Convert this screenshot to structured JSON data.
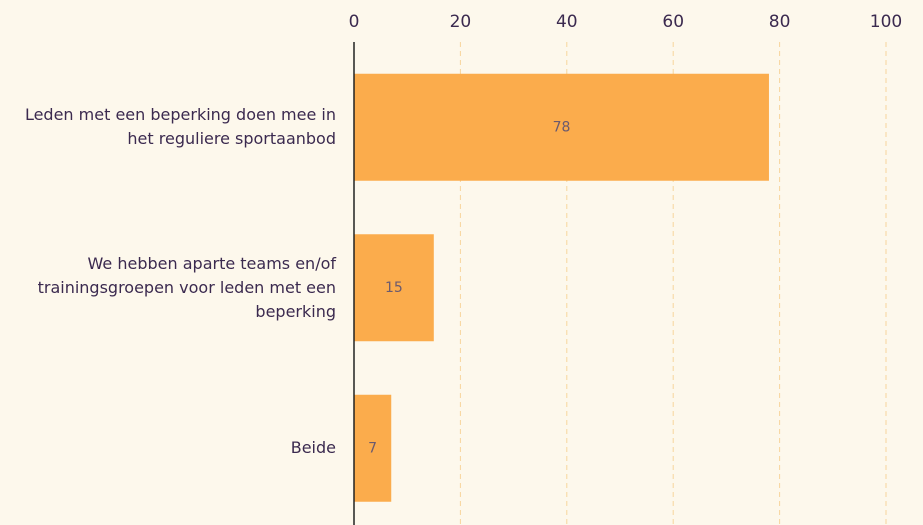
{
  "chart_data": {
    "type": "bar",
    "orientation": "horizontal",
    "categories": [
      "Leden met een beperking doen mee in het reguliere sportaanbod",
      "We hebben aparte teams en/of trainingsgroepen voor leden met een beperking",
      "Beide"
    ],
    "values": [
      78,
      15,
      7
    ],
    "color": "#fbac4c",
    "xlim": [
      0,
      100
    ],
    "xticks": [
      0,
      20,
      40,
      60,
      80,
      100
    ],
    "grid": true
  }
}
